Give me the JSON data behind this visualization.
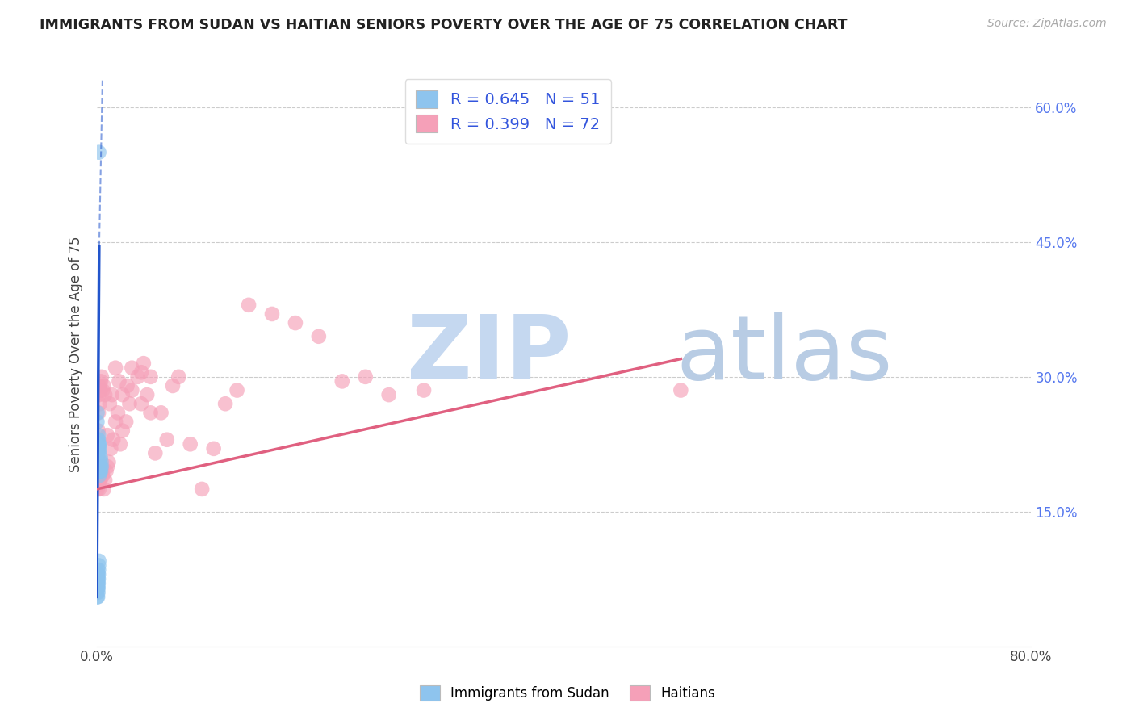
{
  "title": "IMMIGRANTS FROM SUDAN VS HAITIAN SENIORS POVERTY OVER THE AGE OF 75 CORRELATION CHART",
  "source": "Source: ZipAtlas.com",
  "ylabel": "Seniors Poverty Over the Age of 75",
  "xlim": [
    0.0,
    0.8
  ],
  "ylim": [
    0.0,
    0.65
  ],
  "xtick_positions": [
    0.0,
    0.1,
    0.2,
    0.3,
    0.4,
    0.5,
    0.6,
    0.7,
    0.8
  ],
  "xticklabels": [
    "0.0%",
    "",
    "",
    "",
    "",
    "",
    "",
    "",
    "80.0%"
  ],
  "ytick_pos": [
    0.15,
    0.3,
    0.45,
    0.6
  ],
  "ytick_labels": [
    "15.0%",
    "30.0%",
    "45.0%",
    "60.0%"
  ],
  "legend_r1": "R = 0.645",
  "legend_n1": "N = 51",
  "legend_r2": "R = 0.399",
  "legend_n2": "N = 72",
  "color_blue": "#8ec4ee",
  "color_pink": "#f5a0b8",
  "color_blue_line": "#2255cc",
  "color_pink_line": "#e06080",
  "color_legend_text": "#3355dd",
  "watermark_zip": "#c5d8f0",
  "watermark_atlas": "#b8cce4",
  "sudan_x": [
    0.0003,
    0.0004,
    0.0005,
    0.0005,
    0.0006,
    0.0006,
    0.0007,
    0.0008,
    0.0008,
    0.0009,
    0.001,
    0.001,
    0.0011,
    0.0012,
    0.0013,
    0.0014,
    0.0015,
    0.0016,
    0.0017,
    0.0018,
    0.002,
    0.0022,
    0.0024,
    0.0026,
    0.0028,
    0.003,
    0.0032,
    0.0035,
    0.0038,
    0.004,
    0.0003,
    0.0004,
    0.0005,
    0.0006,
    0.0007,
    0.0008,
    0.0009,
    0.001,
    0.0011,
    0.0012,
    0.0013,
    0.0014,
    0.0015,
    0.0016,
    0.0018,
    0.002,
    0.0022,
    0.0025,
    0.0003,
    0.0004,
    0.0018
  ],
  "sudan_y": [
    0.055,
    0.06,
    0.065,
    0.07,
    0.075,
    0.08,
    0.085,
    0.055,
    0.065,
    0.07,
    0.075,
    0.08,
    0.06,
    0.065,
    0.07,
    0.075,
    0.08,
    0.085,
    0.09,
    0.095,
    0.19,
    0.195,
    0.2,
    0.205,
    0.195,
    0.2,
    0.21,
    0.195,
    0.205,
    0.2,
    0.21,
    0.215,
    0.22,
    0.225,
    0.215,
    0.22,
    0.225,
    0.23,
    0.22,
    0.215,
    0.225,
    0.23,
    0.235,
    0.22,
    0.225,
    0.215,
    0.225,
    0.22,
    0.25,
    0.26,
    0.55
  ],
  "haitian_x": [
    0.0005,
    0.0008,
    0.001,
    0.0012,
    0.0015,
    0.0018,
    0.002,
    0.0025,
    0.003,
    0.0035,
    0.004,
    0.0045,
    0.005,
    0.006,
    0.007,
    0.008,
    0.009,
    0.01,
    0.012,
    0.014,
    0.016,
    0.018,
    0.02,
    0.022,
    0.025,
    0.028,
    0.03,
    0.035,
    0.038,
    0.04,
    0.043,
    0.046,
    0.05,
    0.055,
    0.06,
    0.065,
    0.07,
    0.08,
    0.09,
    0.1,
    0.11,
    0.12,
    0.13,
    0.15,
    0.17,
    0.19,
    0.21,
    0.23,
    0.25,
    0.28,
    0.0012,
    0.0015,
    0.0018,
    0.002,
    0.0025,
    0.003,
    0.0035,
    0.004,
    0.005,
    0.006,
    0.007,
    0.009,
    0.011,
    0.013,
    0.016,
    0.019,
    0.022,
    0.026,
    0.03,
    0.038,
    0.046,
    0.5
  ],
  "haitian_y": [
    0.175,
    0.18,
    0.185,
    0.19,
    0.18,
    0.185,
    0.175,
    0.19,
    0.185,
    0.195,
    0.2,
    0.195,
    0.19,
    0.175,
    0.185,
    0.195,
    0.2,
    0.205,
    0.22,
    0.23,
    0.25,
    0.26,
    0.225,
    0.24,
    0.25,
    0.27,
    0.285,
    0.3,
    0.27,
    0.315,
    0.28,
    0.3,
    0.215,
    0.26,
    0.23,
    0.29,
    0.3,
    0.225,
    0.175,
    0.22,
    0.27,
    0.285,
    0.38,
    0.37,
    0.36,
    0.345,
    0.295,
    0.3,
    0.28,
    0.285,
    0.24,
    0.26,
    0.28,
    0.29,
    0.27,
    0.285,
    0.295,
    0.3,
    0.285,
    0.29,
    0.28,
    0.235,
    0.27,
    0.28,
    0.31,
    0.295,
    0.28,
    0.29,
    0.31,
    0.305,
    0.26,
    0.285
  ],
  "blue_trend_x0": 0.0,
  "blue_trend_x_solid_end": 0.002,
  "blue_trend_x_dashed_end": 0.0048,
  "blue_trend_y0": 0.055,
  "blue_trend_y_solid_end": 0.445,
  "blue_trend_y_dashed_end": 0.63,
  "pink_trend_x0": 0.0,
  "pink_trend_x_end": 0.5,
  "pink_trend_y0": 0.175,
  "pink_trend_y_end": 0.32
}
